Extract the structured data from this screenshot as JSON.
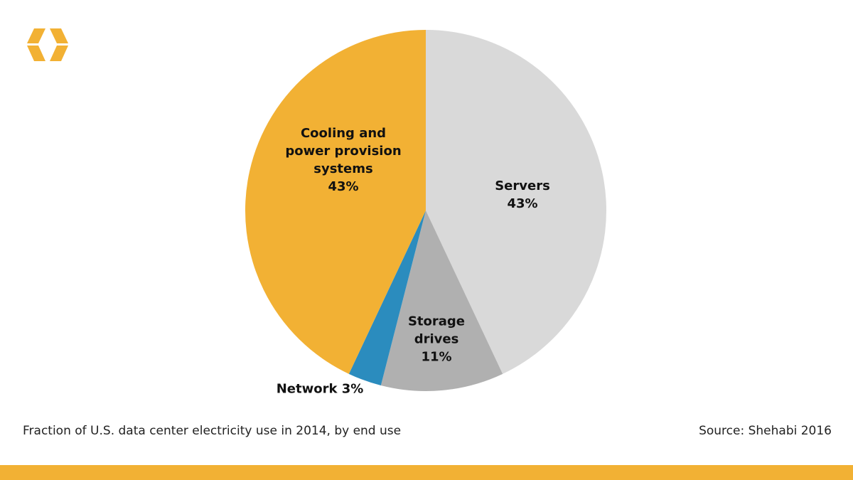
{
  "chart_data": {
    "type": "pie",
    "title": "",
    "slices": [
      {
        "label": "Servers",
        "value": 43,
        "value_label": "43%",
        "color": "#d9d9d9"
      },
      {
        "label": "Storage drives",
        "value": 11,
        "value_label": "11%",
        "color": "#b0b0b0"
      },
      {
        "label": "Network",
        "value": 3,
        "value_label": "3%",
        "color": "#2b8cbe"
      },
      {
        "label": "Cooling and power provision systems",
        "value": 43,
        "value_label": "43%",
        "color": "#f2b134"
      }
    ],
    "caption": "Fraction of U.S. data center electricity use in 2014, by end use",
    "source": "Source: Shehabi 2016"
  },
  "brand_color": "#f2b134"
}
